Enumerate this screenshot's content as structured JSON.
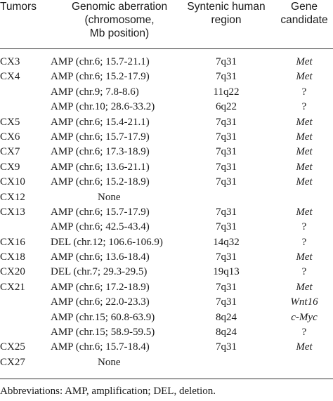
{
  "table": {
    "headers": {
      "tumors": "Tumors",
      "aberration": [
        "Genomic aberration",
        "(chromosome,",
        "Mb position)"
      ],
      "region": [
        "Syntenic human",
        "region"
      ],
      "gene": [
        "Gene",
        "candidate"
      ]
    },
    "rows": [
      {
        "tumor": "CX3",
        "aberration": "AMP (chr.6; 15.7-21.1)",
        "region": "7q31",
        "gene": "Met"
      },
      {
        "tumor": "CX4",
        "aberration": "AMP (chr.6; 15.2-17.9)",
        "region": "7q31",
        "gene": "Met"
      },
      {
        "tumor": "",
        "aberration": "AMP (chr.9; 7.8-8.6)",
        "region": "11q22",
        "gene": "?"
      },
      {
        "tumor": "",
        "aberration": "AMP (chr.10; 28.6-33.2)",
        "region": "6q22",
        "gene": "?"
      },
      {
        "tumor": "CX5",
        "aberration": "AMP (chr.6; 15.4-21.1)",
        "region": "7q31",
        "gene": "Met"
      },
      {
        "tumor": "CX6",
        "aberration": "AMP (chr.6; 15.7-17.9)",
        "region": "7q31",
        "gene": "Met"
      },
      {
        "tumor": "CX7",
        "aberration": "AMP (chr.6; 17.3-18.9)",
        "region": "7q31",
        "gene": "Met"
      },
      {
        "tumor": "CX9",
        "aberration": "AMP (chr.6; 13.6-21.1)",
        "region": "7q31",
        "gene": "Met"
      },
      {
        "tumor": "CX10",
        "aberration": "AMP (chr.6; 15.2-18.9)",
        "region": "7q31",
        "gene": "Met"
      },
      {
        "tumor": "CX12",
        "aberration": "None",
        "region": "",
        "gene": ""
      },
      {
        "tumor": "CX13",
        "aberration": "AMP (chr.6; 15.7-17.9)",
        "region": "7q31",
        "gene": "Met"
      },
      {
        "tumor": "",
        "aberration": "AMP (chr.6; 42.5-43.4)",
        "region": "7q31",
        "gene": "?"
      },
      {
        "tumor": "CX16",
        "aberration": "DEL  (chr.12; 106.6-106.9)",
        "region": "14q32",
        "gene": "?"
      },
      {
        "tumor": "CX18",
        "aberration": "AMP (chr.6; 13.6-18.4)",
        "region": "7q31",
        "gene": "Met"
      },
      {
        "tumor": "CX20",
        "aberration": "DEL  (chr.7; 29.3-29.5)",
        "region": "19q13",
        "gene": "?"
      },
      {
        "tumor": "CX21",
        "aberration": "AMP (chr.6; 17.2-18.9)",
        "region": "7q31",
        "gene": "Met"
      },
      {
        "tumor": "",
        "aberration": "AMP (chr.6; 22.0-23.3)",
        "region": "7q31",
        "gene": "Wnt16"
      },
      {
        "tumor": "",
        "aberration": "AMP (chr.15; 60.8-63.9)",
        "region": "8q24",
        "gene": "c-Myc"
      },
      {
        "tumor": "",
        "aberration": "AMP (chr.15; 58.9-59.5)",
        "region": "8q24",
        "gene": "?"
      },
      {
        "tumor": "CX25",
        "aberration": "AMP (chr.6; 15.7-18.4)",
        "region": "7q31",
        "gene": "Met"
      },
      {
        "tumor": "CX27",
        "aberration": "None",
        "region": "",
        "gene": ""
      }
    ]
  },
  "footnote": "Abbreviations: AMP, amplification; DEL, deletion."
}
